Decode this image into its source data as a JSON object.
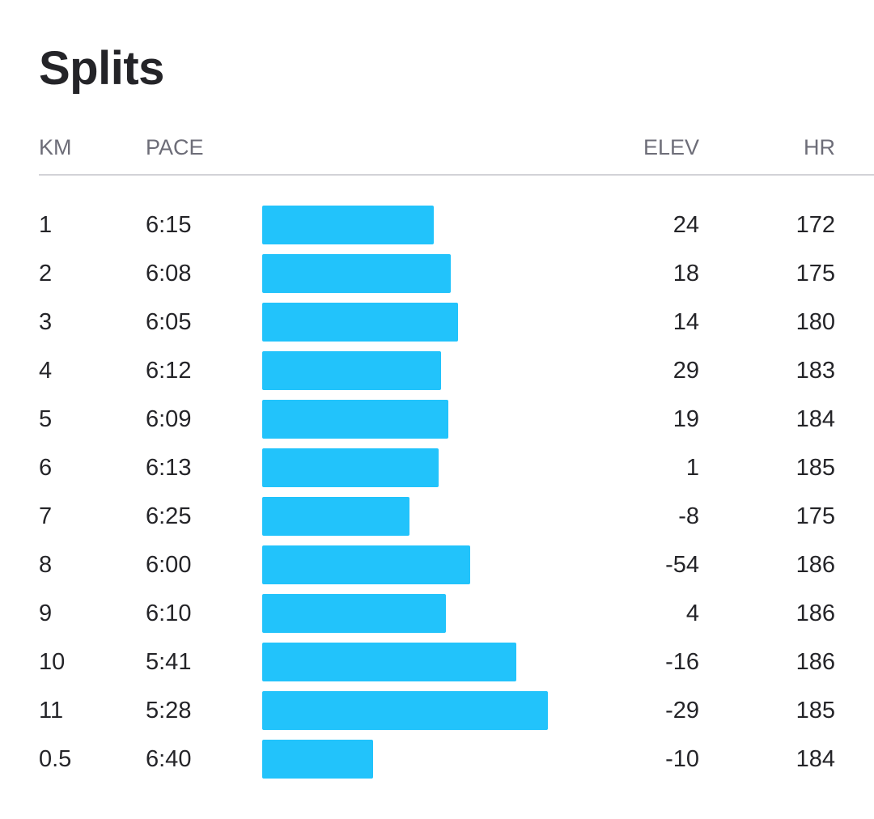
{
  "title": "Splits",
  "columns": {
    "km": "KM",
    "pace": "PACE",
    "elev": "ELEV",
    "hr": "HR"
  },
  "colors": {
    "bar": "#22c3fb",
    "text": "#242428",
    "header_text": "#6d6d78",
    "divider": "#d2d2d7"
  },
  "splits": [
    {
      "km": "1",
      "pace": "6:15",
      "elev": "24",
      "hr": "172",
      "pace_seconds": 375
    },
    {
      "km": "2",
      "pace": "6:08",
      "elev": "18",
      "hr": "175",
      "pace_seconds": 368
    },
    {
      "km": "3",
      "pace": "6:05",
      "elev": "14",
      "hr": "180",
      "pace_seconds": 365
    },
    {
      "km": "4",
      "pace": "6:12",
      "elev": "29",
      "hr": "183",
      "pace_seconds": 372
    },
    {
      "km": "5",
      "pace": "6:09",
      "elev": "19",
      "hr": "184",
      "pace_seconds": 369
    },
    {
      "km": "6",
      "pace": "6:13",
      "elev": "1",
      "hr": "185",
      "pace_seconds": 373
    },
    {
      "km": "7",
      "pace": "6:25",
      "elev": "-8",
      "hr": "175",
      "pace_seconds": 385
    },
    {
      "km": "8",
      "pace": "6:00",
      "elev": "-54",
      "hr": "186",
      "pace_seconds": 360
    },
    {
      "km": "9",
      "pace": "6:10",
      "elev": "4",
      "hr": "186",
      "pace_seconds": 370
    },
    {
      "km": "10",
      "pace": "5:41",
      "elev": "-16",
      "hr": "186",
      "pace_seconds": 341
    },
    {
      "km": "11",
      "pace": "5:28",
      "elev": "-29",
      "hr": "185",
      "pace_seconds": 328
    },
    {
      "km": "0.5",
      "pace": "6:40",
      "elev": "-10",
      "hr": "184",
      "pace_seconds": 400
    }
  ]
}
